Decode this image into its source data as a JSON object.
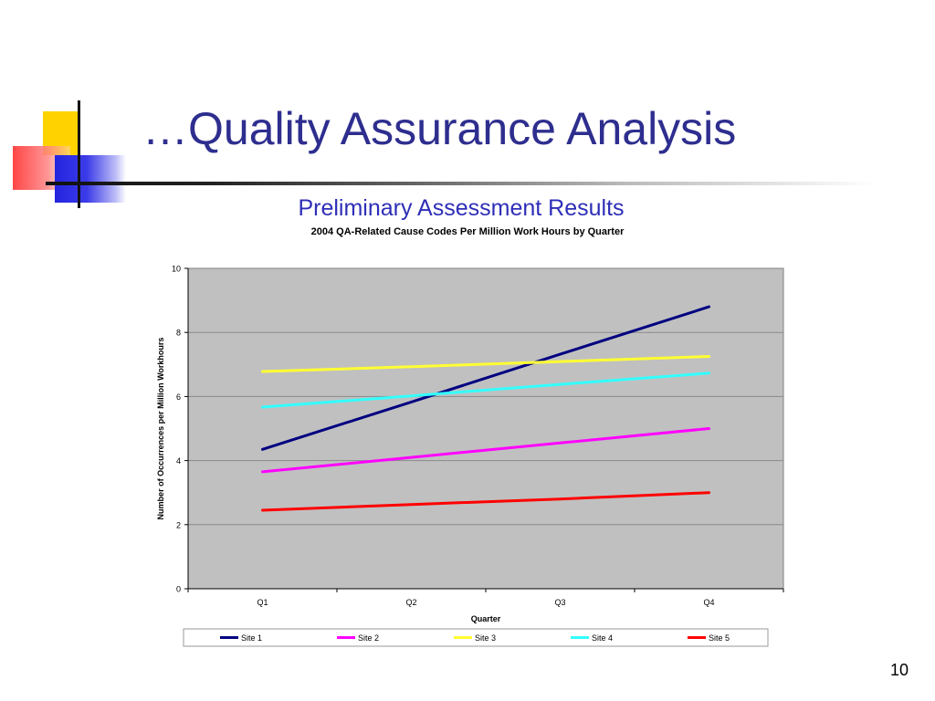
{
  "slide": {
    "title": "…Quality Assurance Analysis",
    "subtitle": "Preliminary Assessment Results",
    "page_number": "10"
  },
  "chart_data": {
    "type": "line",
    "title": "2004 QA-Related Cause Codes Per Million Work Hours by Quarter",
    "xlabel": "Quarter",
    "ylabel": "Number of Occurrences per Million Workhours",
    "categories": [
      "Q1",
      "Q2",
      "Q3",
      "Q4"
    ],
    "ylim": [
      0,
      10
    ],
    "yticks": [
      0,
      2,
      4,
      6,
      8,
      10
    ],
    "grid": true,
    "legend": "bottom",
    "plot_background": "#c0c0c0",
    "series": [
      {
        "name": "Site 1",
        "color": "#000080",
        "values": [
          4.35,
          5.83,
          7.32,
          8.8
        ]
      },
      {
        "name": "Site 2",
        "color": "#ff00ff",
        "values": [
          3.65,
          4.1,
          4.55,
          5.0
        ]
      },
      {
        "name": "Site 3",
        "color": "#ffff33",
        "values": [
          6.78,
          6.93,
          7.09,
          7.25
        ]
      },
      {
        "name": "Site 4",
        "color": "#33ffff",
        "values": [
          5.67,
          6.02,
          6.38,
          6.73
        ]
      },
      {
        "name": "Site 5",
        "color": "#ff0000",
        "values": [
          2.45,
          2.63,
          2.8,
          3.0
        ]
      }
    ]
  }
}
